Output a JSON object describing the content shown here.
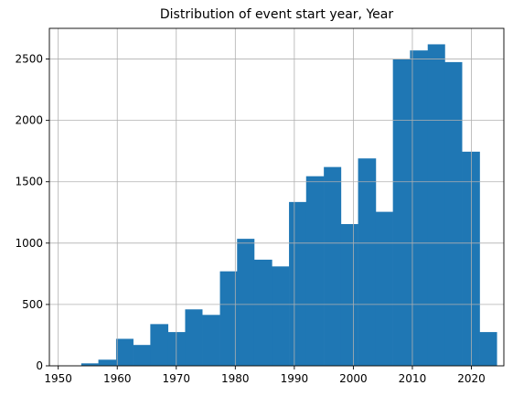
{
  "chart_data": {
    "type": "bar",
    "title": "Distribution of event start year, Year",
    "xlabel": "",
    "ylabel": "",
    "xlim": [
      1948.5,
      2025.5
    ],
    "ylim": [
      0,
      2750
    ],
    "grid": true,
    "bar_color": "#1f77b4",
    "bin_edges": [
      1951.0,
      1953.9,
      1956.8,
      1959.8,
      1962.7,
      1965.6,
      1968.6,
      1971.5,
      1974.4,
      1977.4,
      1980.3,
      1983.2,
      1986.2,
      1989.1,
      1992.0,
      1995.0,
      1997.9,
      2000.8,
      2003.8,
      2006.7,
      2009.6,
      2012.6,
      2015.5,
      2018.4,
      2021.4,
      2024.3
    ],
    "values": [
      0,
      20,
      50,
      220,
      170,
      340,
      275,
      460,
      415,
      770,
      1035,
      865,
      810,
      1335,
      1545,
      1620,
      1155,
      1690,
      1255,
      2500,
      2570,
      2620,
      2475,
      1745,
      275
    ],
    "x_ticks": [
      1950,
      1960,
      1970,
      1980,
      1990,
      2000,
      2010,
      2020
    ],
    "y_ticks": [
      0,
      500,
      1000,
      1500,
      2000,
      2500
    ]
  }
}
